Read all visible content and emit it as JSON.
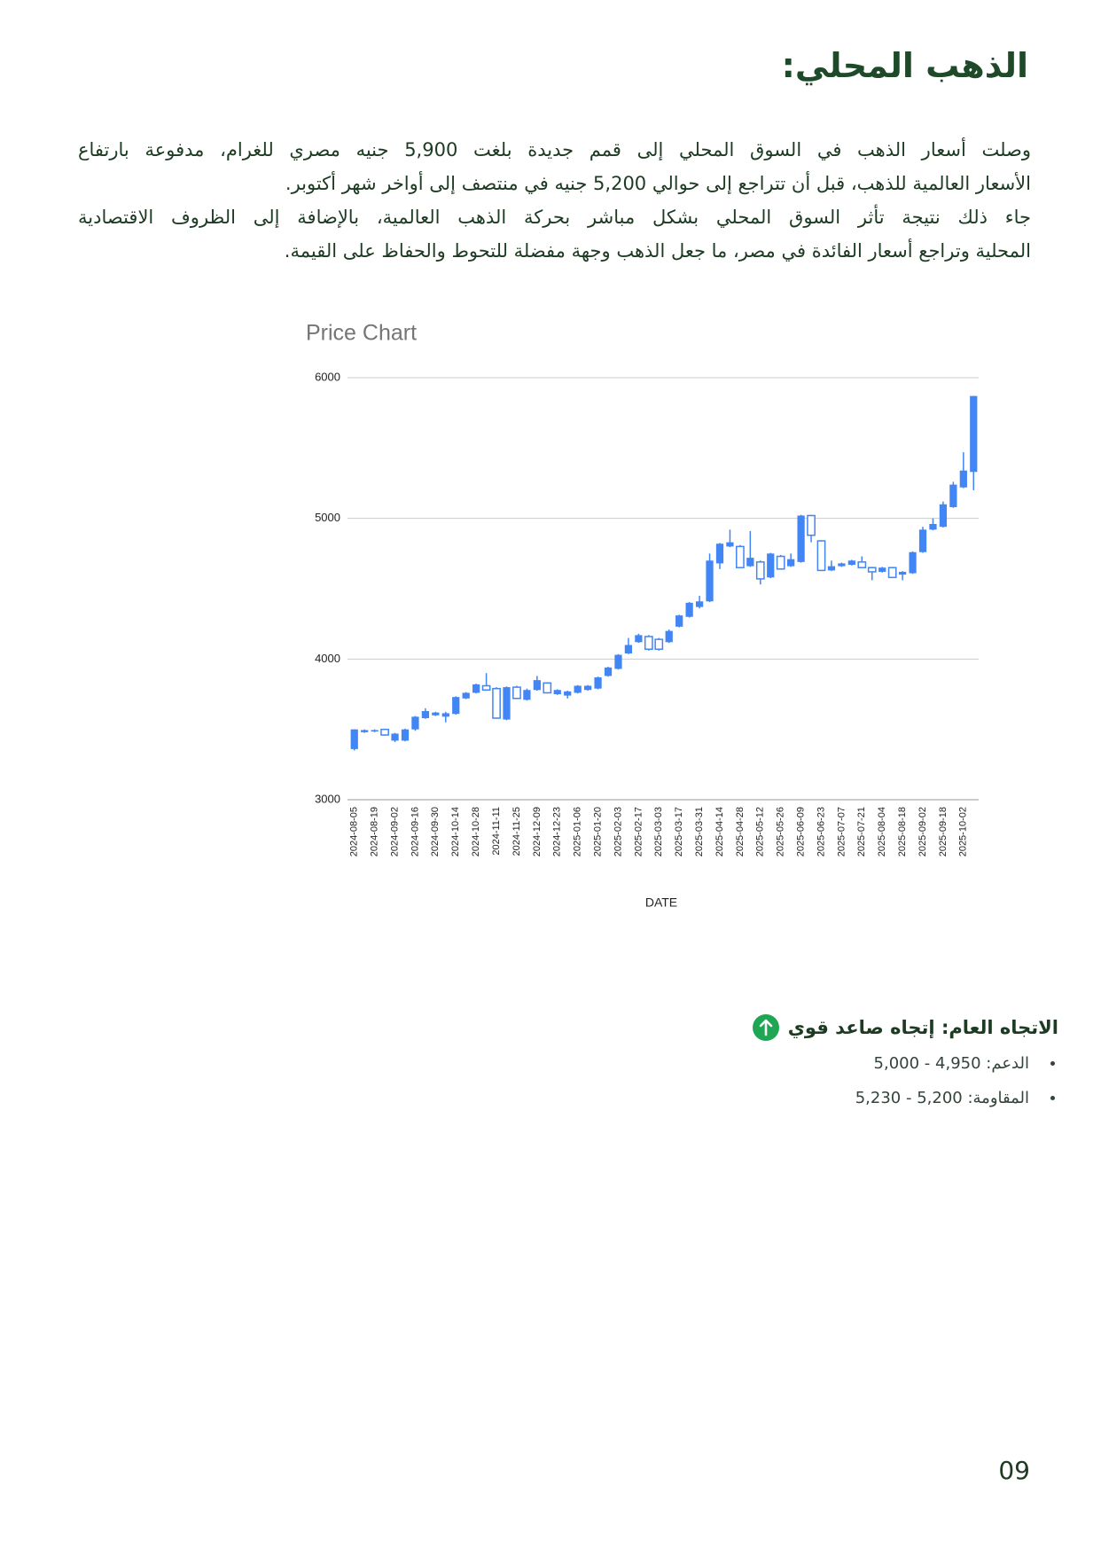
{
  "header": {
    "title": "الذهب المحلي:"
  },
  "paragraph": {
    "lines": [
      "وصلت أسعار الذهب في السوق المحلي إلى قمم جديدة بلغت 5,900 جنيه مصري للغرام، مدفوعة بارتفاع",
      "الأسعار العالمية للذهب، قبل أن تتراجع إلى حوالي 5,200 جنيه في منتصف إلى أواخر شهر أكتوبر.",
      "جاء ذلك نتيجة تأثر السوق المحلي بشكل مباشر بحركة الذهب العالمية، بالإضافة إلى الظروف الاقتصادية",
      "المحلية وتراجع أسعار الفائدة في مصر، ما جعل الذهب وجهة مفضلة للتحوط والحفاظ على القيمة."
    ]
  },
  "chart_data": {
    "type": "candlestick",
    "title": "Price Chart",
    "x_label": "DATE",
    "color": "#4285f4",
    "grid": true,
    "ylim": [
      3000,
      6000
    ],
    "yticks": [
      3000,
      4000,
      5000,
      6000
    ],
    "categories": [
      "2024-08-05",
      null,
      "2024-08-19",
      null,
      "2024-09-02",
      null,
      "2024-09-16",
      null,
      "2024-09-30",
      null,
      "2024-10-14",
      null,
      "2024-10-28",
      null,
      "2024-11-11",
      null,
      "2024-11-25",
      null,
      "2024-12-09",
      null,
      "2024-12-23",
      null,
      "2025-01-06",
      null,
      "2025-01-20",
      null,
      "2025-02-03",
      null,
      "2025-02-17",
      null,
      "2025-03-03",
      null,
      "2025-03-17",
      null,
      "2025-03-31",
      null,
      "2025-04-14",
      null,
      "2025-04-28",
      null,
      "2025-05-12",
      null,
      "2025-05-26",
      null,
      "2025-06-09",
      null,
      "2025-06-23",
      null,
      "2025-07-07",
      null,
      "2025-07-21",
      null,
      "2025-08-04",
      null,
      "2025-08-18",
      null,
      "2025-09-02",
      null,
      "2025-09-18",
      null,
      "2025-10-02",
      null
    ],
    "open": [
      3360,
      3480,
      3485,
      3500,
      3420,
      3420,
      3500,
      3580,
      3600,
      3590,
      3610,
      3720,
      3760,
      3810,
      3790,
      3570,
      3800,
      3710,
      3780,
      3830,
      3750,
      3740,
      3760,
      3780,
      3790,
      3880,
      3930,
      4040,
      4120,
      4160,
      4140,
      4120,
      4230,
      4300,
      4370,
      4410,
      4680,
      4800,
      4800,
      4660,
      4690,
      4580,
      4730,
      4660,
      4690,
      5020,
      4840,
      4630,
      4660,
      4670,
      4690,
      4650,
      4620,
      4650,
      4600,
      4610,
      4760,
      4920,
      4940,
      5080,
      5220,
      5330
    ],
    "close": [
      3500,
      3495,
      3495,
      3460,
      3470,
      3500,
      3590,
      3630,
      3620,
      3615,
      3730,
      3760,
      3820,
      3780,
      3580,
      3800,
      3720,
      3780,
      3850,
      3760,
      3780,
      3770,
      3810,
      3810,
      3870,
      3940,
      4030,
      4100,
      4170,
      4070,
      4070,
      4200,
      4310,
      4400,
      4410,
      4700,
      4820,
      4830,
      4650,
      4720,
      4570,
      4750,
      4640,
      4710,
      5020,
      4880,
      4630,
      4660,
      4680,
      4700,
      4650,
      4620,
      4650,
      4580,
      4620,
      4760,
      4920,
      4960,
      5100,
      5240,
      5340,
      5870
    ],
    "high": [
      3500,
      3500,
      3500,
      3505,
      3475,
      3505,
      3595,
      3650,
      3625,
      3625,
      3735,
      3765,
      3825,
      3900,
      3800,
      3805,
      3810,
      3790,
      3880,
      3835,
      3785,
      3775,
      3815,
      3815,
      3875,
      3945,
      4035,
      4150,
      4180,
      4170,
      4150,
      4210,
      4315,
      4405,
      4450,
      4750,
      4825,
      4920,
      4810,
      4910,
      4700,
      4755,
      4740,
      4750,
      5025,
      5025,
      4845,
      4700,
      4685,
      4705,
      4730,
      4655,
      4655,
      4655,
      4625,
      4765,
      4940,
      5000,
      5120,
      5260,
      5470,
      5870
    ],
    "low": [
      3350,
      3475,
      3480,
      3455,
      3410,
      3415,
      3490,
      3575,
      3595,
      3550,
      3605,
      3715,
      3755,
      3775,
      3575,
      3565,
      3715,
      3705,
      3775,
      3755,
      3745,
      3720,
      3755,
      3775,
      3785,
      3875,
      3925,
      4035,
      4115,
      4060,
      4060,
      4115,
      4225,
      4295,
      4360,
      4405,
      4640,
      4795,
      4645,
      4655,
      4530,
      4575,
      4635,
      4655,
      4685,
      4830,
      4625,
      4625,
      4655,
      4665,
      4645,
      4560,
      4615,
      4575,
      4560,
      4605,
      4755,
      4915,
      4935,
      5075,
      5215,
      5200
    ]
  },
  "trend": {
    "heading": "الاتجاه العام: إتجاه صاعد قوي",
    "items": [
      "الدعم: 4,950 - 5,000",
      "المقاومة: 5,200 - 5,230"
    ]
  },
  "footer": {
    "page_number": "09"
  }
}
